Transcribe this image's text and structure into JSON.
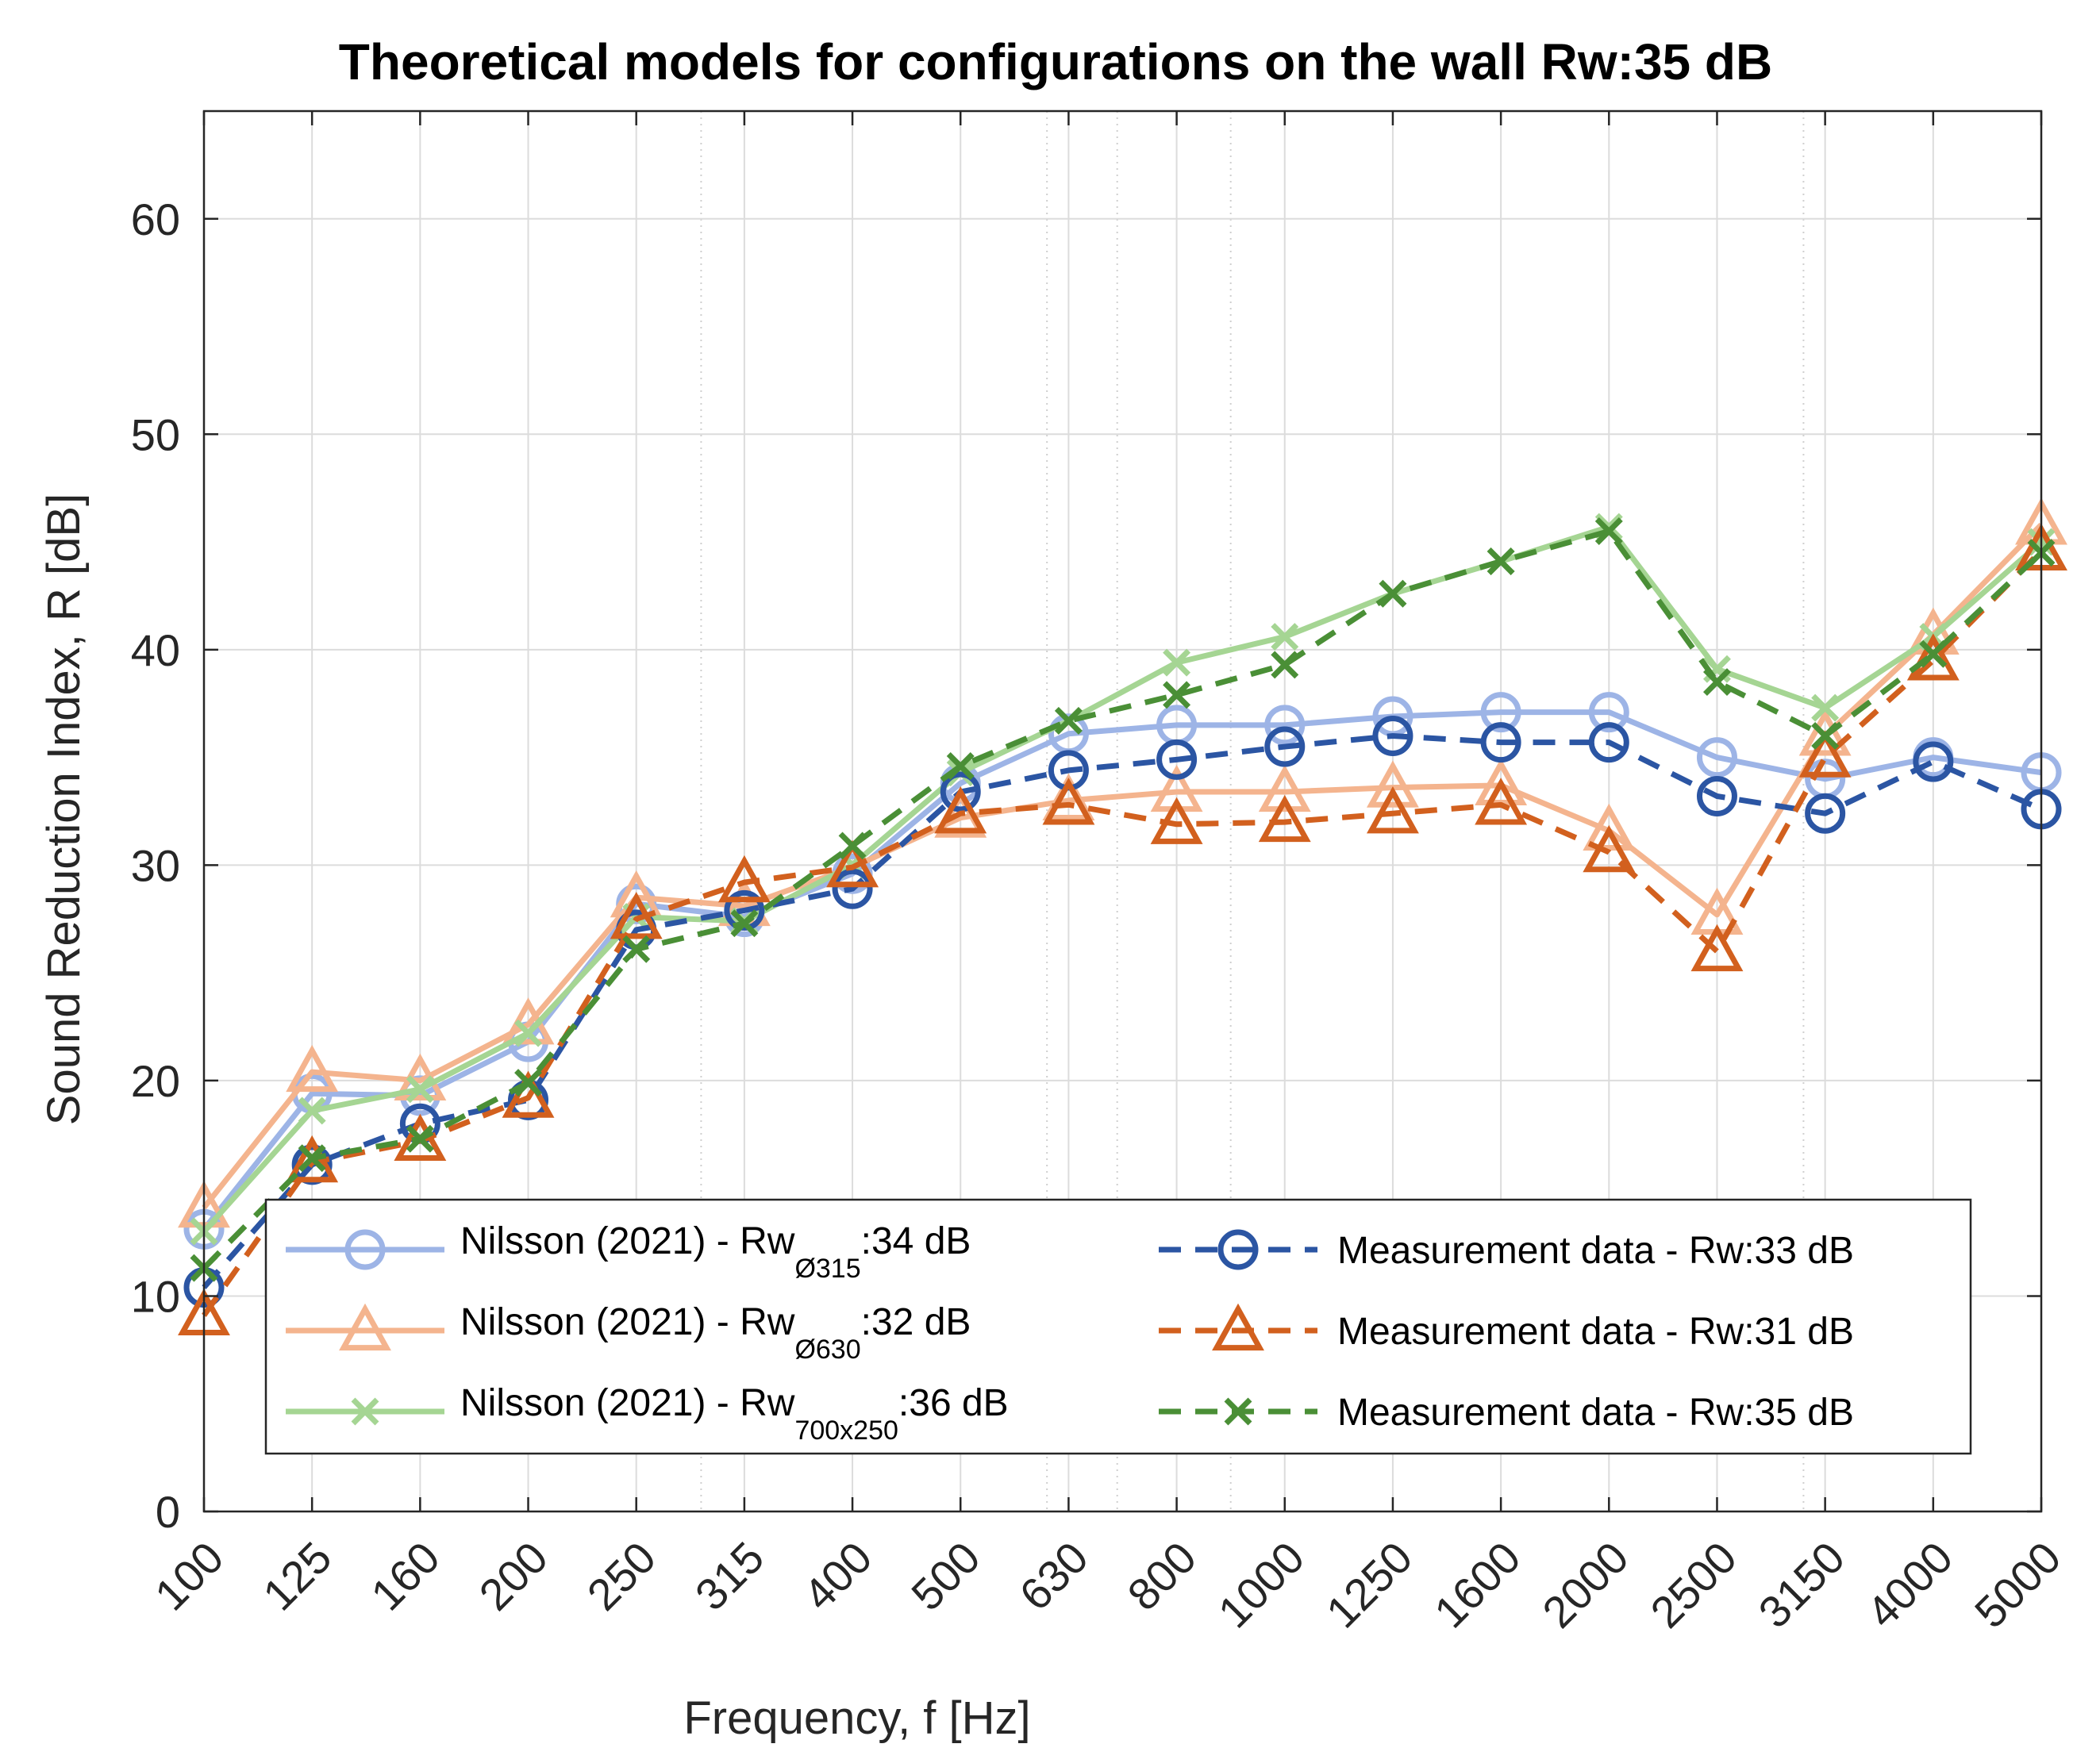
{
  "chart_data": {
    "type": "line",
    "title": "Theoretical models for configurations on the wall Rw:35 dB",
    "xlabel": "Frequency, f [Hz]",
    "ylabel": "Sound Reduction Index, R [dB]",
    "ylim": [
      0,
      65
    ],
    "yticks": [
      "0",
      "10",
      "20",
      "30",
      "40",
      "50",
      "60"
    ],
    "categories": [
      "100",
      "125",
      "160",
      "200",
      "250",
      "315",
      "400",
      "500",
      "630",
      "800",
      "1000",
      "1250",
      "1600",
      "2000",
      "2500",
      "3150",
      "4000",
      "5000"
    ],
    "grid": true,
    "legend_position": "bottom",
    "series": [
      {
        "name": "Nilsson (2021) - Rw Ø315 :34 dB",
        "label_main": "Nilsson (2021) - Rw",
        "label_sub": "Ø315",
        "label_tail": ":34 dB",
        "color": "#9DB4E6",
        "dash": "solid",
        "marker": "circle",
        "values": [
          13.1,
          19.4,
          19.3,
          21.8,
          28.2,
          27.6,
          29.6,
          33.8,
          36.1,
          36.5,
          36.5,
          36.9,
          37.1,
          37.1,
          35.0,
          34.0,
          35.0,
          34.3
        ]
      },
      {
        "name": "Nilsson (2021) - Rw Ø630 :32 dB",
        "label_main": "Nilsson (2021) - Rw",
        "label_sub": "Ø630",
        "label_tail": ":32 dB",
        "color": "#F4B48E",
        "dash": "solid",
        "marker": "triangle",
        "values": [
          14.1,
          20.4,
          20.0,
          22.6,
          28.5,
          28.1,
          29.9,
          32.2,
          33.0,
          33.4,
          33.4,
          33.6,
          33.7,
          31.6,
          27.7,
          36.0,
          40.7,
          45.8
        ]
      },
      {
        "name": "Nilsson (2021) - Rw 700x250 :36 dB",
        "label_main": "Nilsson (2021) - Rw",
        "label_sub": "700x250",
        "label_tail": ":36 dB",
        "color": "#A5D593",
        "dash": "solid",
        "marker": "x",
        "values": [
          13.0,
          18.6,
          19.6,
          22.2,
          27.6,
          27.4,
          30.0,
          34.3,
          36.7,
          39.4,
          40.6,
          42.6,
          44.1,
          45.7,
          39.1,
          37.3,
          40.6,
          45.0
        ]
      },
      {
        "name": "Measurement data - Rw:33 dB",
        "label_main": "Measurement data - Rw:33 dB",
        "color": "#2B55A3",
        "dash": "dashed",
        "marker": "circle",
        "values": [
          10.4,
          16.1,
          18.0,
          19.1,
          27.0,
          27.9,
          28.9,
          33.4,
          34.4,
          34.9,
          35.5,
          36.0,
          35.7,
          35.7,
          33.2,
          32.4,
          34.8,
          32.6
        ]
      },
      {
        "name": "Measurement data - Rw:31 dB",
        "label_main": "Measurement data - Rw:31 dB",
        "color": "#D2601E",
        "dash": "dashed",
        "marker": "triangle",
        "values": [
          9.1,
          16.2,
          17.2,
          19.2,
          27.5,
          29.2,
          29.9,
          32.4,
          32.8,
          31.9,
          32.0,
          32.4,
          32.8,
          30.6,
          26.0,
          35.0,
          39.5,
          44.6
        ]
      },
      {
        "name": "Measurement data - Rw:35 dB",
        "label_main": "Measurement data - Rw:35 dB",
        "color": "#4A8F36",
        "dash": "dashed",
        "marker": "x",
        "values": [
          11.3,
          16.4,
          17.3,
          19.9,
          26.1,
          27.3,
          30.9,
          34.6,
          36.7,
          37.9,
          39.3,
          42.6,
          44.1,
          45.5,
          38.5,
          36.0,
          39.8,
          44.5
        ]
      }
    ]
  }
}
